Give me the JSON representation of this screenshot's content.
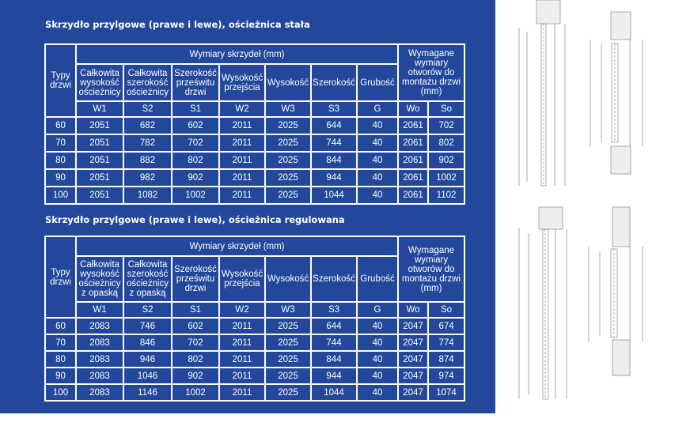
{
  "tables": [
    {
      "title": "Skrzydło przylgowe (prawe i lewe), ościeżnica stała",
      "type_header": "Typy drzwi",
      "group_header": "Wymiary skrzydeł (mm)",
      "required_header": "Wymagane wymiary otworów do montażu drzwi (mm)",
      "columns": [
        "Całkowita wysokość ościeżnicy",
        "Całkowita szerokość ościeżnicy",
        "Szerokość prześwitu drzwi",
        "Wysokość przejścia",
        "Wysokość",
        "Szerokość",
        "Grubość"
      ],
      "codes": [
        "W1",
        "S2",
        "S1",
        "W2",
        "W3",
        "S3",
        "G",
        "Wo",
        "So"
      ],
      "rows": [
        [
          "60",
          "2051",
          "682",
          "602",
          "2011",
          "2025",
          "644",
          "40",
          "2061",
          "702"
        ],
        [
          "70",
          "2051",
          "782",
          "702",
          "2011",
          "2025",
          "744",
          "40",
          "2061",
          "802"
        ],
        [
          "80",
          "2051",
          "882",
          "802",
          "2011",
          "2025",
          "844",
          "40",
          "2061",
          "902"
        ],
        [
          "90",
          "2051",
          "982",
          "902",
          "2011",
          "2025",
          "944",
          "40",
          "2061",
          "1002"
        ],
        [
          "100",
          "2051",
          "1082",
          "1002",
          "2011",
          "2025",
          "1044",
          "40",
          "2061",
          "1102"
        ]
      ]
    },
    {
      "title": "Skrzydło przylgowe (prawe i lewe), ościeżnica regulowana",
      "type_header": "Typy drzwi",
      "group_header": "Wymiary skrzydeł (mm)",
      "required_header": "Wymagane wymiary otworów do montażu drzwi (mm)",
      "columns": [
        "Całkowita wysokość ościeżnicy z opaską",
        "Całkowita szerokość ościeżnicy z opaską",
        "Szerokość prześwitu drzwi",
        "Wysokość przejścia",
        "Wysokość",
        "Szerokość",
        "Grubość"
      ],
      "codes": [
        "W1",
        "S2",
        "S1",
        "W2",
        "W3",
        "S3",
        "G",
        "Wo",
        "So"
      ],
      "rows": [
        [
          "60",
          "2083",
          "746",
          "602",
          "2011",
          "2025",
          "644",
          "40",
          "2047",
          "674"
        ],
        [
          "70",
          "2083",
          "846",
          "702",
          "2011",
          "2025",
          "744",
          "40",
          "2047",
          "774"
        ],
        [
          "80",
          "2083",
          "946",
          "802",
          "2011",
          "2025",
          "844",
          "40",
          "2047",
          "874"
        ],
        [
          "90",
          "2083",
          "1046",
          "902",
          "2011",
          "2025",
          "944",
          "40",
          "2047",
          "974"
        ],
        [
          "100",
          "2083",
          "1146",
          "1002",
          "2011",
          "2025",
          "1044",
          "40",
          "2047",
          "1074"
        ]
      ]
    }
  ],
  "colors": {
    "panel": "#23479a",
    "text": "#ffffff"
  }
}
